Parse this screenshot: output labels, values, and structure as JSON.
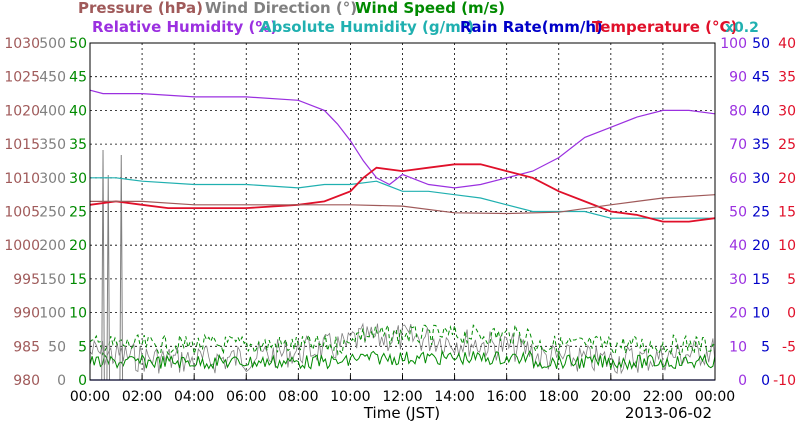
{
  "chart_data": {
    "type": "line",
    "x_ticks": [
      "00:00",
      "02:00",
      "04:00",
      "06:00",
      "08:00",
      "10:00",
      "12:00",
      "14:00",
      "16:00",
      "18:00",
      "20:00",
      "22:00",
      "00:00"
    ],
    "xlabel": "Time (JST)",
    "date": "2013-06-02",
    "legend": [
      {
        "label": "Pressure (hPa)",
        "color": "#a05a5a"
      },
      {
        "label": "Wind Direction (°)",
        "color": "#808080"
      },
      {
        "label": "Wind Speed (m/s)",
        "color": "#008a00"
      },
      {
        "label": "Relative Humidity (%)",
        "color": "#9b30e0"
      },
      {
        "label": "Absolute Humidity (g/m³)",
        "color": "#20b0b0"
      },
      {
        "label": "Rain Rate(mm/h)",
        "color": "#0000c8"
      },
      {
        "label": "Temperature (°C)",
        "color": "#e0102a"
      }
    ],
    "scale_note": "x0.2",
    "axes": {
      "pressure": {
        "range": [
          980,
          1030
        ],
        "ticks": [
          "1030",
          "1025",
          "1020",
          "1015",
          "1010",
          "1005",
          "1000",
          "995",
          "990",
          "985",
          "980"
        ],
        "color": "#a05a5a"
      },
      "wind_direction": {
        "range": [
          0,
          500
        ],
        "ticks": [
          "500",
          "450",
          "400",
          "350",
          "300",
          "250",
          "200",
          "150",
          "100",
          "50",
          "0"
        ],
        "color": "#808080"
      },
      "wind_speed": {
        "range": [
          0,
          50
        ],
        "ticks": [
          "50",
          "45",
          "40",
          "35",
          "30",
          "25",
          "20",
          "15",
          "10",
          "5",
          "0"
        ],
        "color": "#008a00"
      },
      "humidity": {
        "range": [
          0,
          100
        ],
        "ticks": [
          "100",
          "90",
          "80",
          "70",
          "60",
          "50",
          "40",
          "30",
          "20",
          "10",
          "0"
        ],
        "color": "#9b30e0"
      },
      "rain": {
        "range": [
          0,
          50
        ],
        "ticks": [
          "50",
          "45",
          "40",
          "35",
          "30",
          "25",
          "20",
          "15",
          "10",
          "5",
          "0"
        ],
        "color": "#0000c8"
      },
      "temperature": {
        "range": [
          -10,
          40
        ],
        "ticks": [
          "40",
          "35",
          "30",
          "25",
          "20",
          "15",
          "10",
          "5",
          "0",
          "-5",
          "-10"
        ],
        "color": "#e0102a"
      }
    },
    "series": [
      {
        "name": "Relative Humidity (%)",
        "axis": "humidity",
        "color": "#9b30e0",
        "x": [
          0,
          0.5,
          1,
          2,
          4,
          6,
          8,
          9,
          9.5,
          10,
          10.5,
          11,
          11.5,
          12,
          13,
          14,
          15,
          16,
          17,
          18,
          19,
          20,
          21,
          22,
          23,
          24
        ],
        "y": [
          86,
          85,
          85,
          85,
          84,
          84,
          83,
          80,
          76,
          71,
          65,
          60,
          58,
          61,
          58,
          57,
          58,
          60,
          62,
          66,
          72,
          75,
          78,
          80,
          80,
          79
        ]
      },
      {
        "name": "Absolute Humidity (g/m³)",
        "axis": "rain",
        "color": "#20b0b0",
        "x": [
          0,
          1,
          2,
          4,
          6,
          8,
          9,
          10,
          11,
          12,
          13,
          14,
          15,
          16,
          17,
          18,
          19,
          20,
          21,
          22,
          23,
          24
        ],
        "y": [
          30,
          30,
          29.5,
          29,
          29,
          28.5,
          29,
          29,
          29.5,
          28,
          28,
          27.5,
          27,
          26,
          25,
          25,
          25,
          24,
          24,
          24,
          24,
          24
        ]
      },
      {
        "name": "Temperature (°C)",
        "axis": "temperature",
        "color": "#e0102a",
        "x": [
          0,
          1,
          2,
          3,
          4,
          6,
          8,
          9,
          10,
          10.5,
          11,
          12,
          13,
          14,
          15,
          16,
          17,
          18,
          19,
          20,
          21,
          22,
          23,
          24
        ],
        "y": [
          16,
          16.5,
          16,
          15.5,
          15.5,
          15.5,
          16,
          16.5,
          18,
          20,
          21.5,
          21,
          21.5,
          22,
          22,
          21,
          20,
          18,
          16.5,
          15,
          14.5,
          13.5,
          13.5,
          14
        ]
      },
      {
        "name": "Pressure (hPa)",
        "axis": "pressure",
        "color": "#a05a5a",
        "x": [
          0,
          2,
          4,
          6,
          8,
          10,
          12,
          14,
          16,
          18,
          20,
          21,
          22,
          24
        ],
        "y": [
          1006.5,
          1006.5,
          1006,
          1006,
          1006,
          1006,
          1005.8,
          1004.8,
          1004.7,
          1004.9,
          1006,
          1006.5,
          1007,
          1007.5
        ]
      },
      {
        "name": "Rain Rate(mm/h)",
        "axis": "rain",
        "color": "#0000c8",
        "x": [
          0,
          24
        ],
        "y": [
          0,
          0
        ]
      }
    ]
  }
}
